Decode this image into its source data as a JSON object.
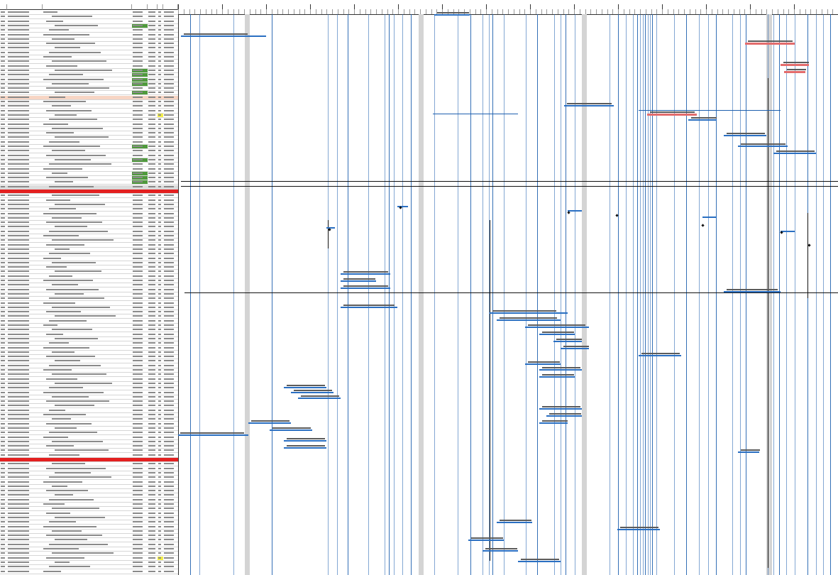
{
  "window": {
    "title": ""
  },
  "table": {
    "columns": [
      {
        "id": "num",
        "label": ""
      },
      {
        "id": "wbs",
        "label": ""
      },
      {
        "id": "name",
        "label": ""
      },
      {
        "id": "cost",
        "label": ""
      },
      {
        "id": "pct",
        "label": ""
      },
      {
        "id": "flag",
        "label": ""
      },
      {
        "id": "actual",
        "label": ""
      }
    ],
    "row_count": 126,
    "row_status": {
      "0": "normal",
      "1": "normal",
      "2": "normal",
      "3": "normal",
      "4": "normal",
      "5": "normal",
      "6": "normal",
      "7": "normal",
      "8": "normal",
      "9": "normal",
      "10": "normal",
      "11": "normal",
      "12": "normal",
      "13": "normal",
      "14": "normal",
      "15": "normal",
      "16": "normal",
      "17": "normal",
      "18": "normal",
      "19": "summary-light",
      "20": "normal",
      "21": "normal",
      "22": "normal",
      "23": "normal",
      "24": "normal",
      "25": "normal",
      "26": "normal",
      "27": "normal",
      "28": "normal",
      "29": "normal",
      "30": "normal",
      "31": "normal",
      "32": "normal",
      "33": "normal",
      "34": "normal",
      "35": "normal",
      "36": "normal",
      "37": "normal",
      "38": "normal",
      "39": "summary-grey",
      "40": "critical",
      "41": "normal"
    },
    "highlight_cells": [
      {
        "row": 3,
        "col": "cost",
        "status": "complete"
      },
      {
        "row": 13,
        "col": "cost",
        "status": "complete"
      },
      {
        "row": 14,
        "col": "cost",
        "status": "complete"
      },
      {
        "row": 15,
        "col": "cost",
        "status": "complete"
      },
      {
        "row": 16,
        "col": "cost",
        "status": "complete"
      },
      {
        "row": 18,
        "col": "cost",
        "status": "complete"
      },
      {
        "row": 23,
        "col": "flag",
        "status": "warning"
      },
      {
        "row": 30,
        "col": "cost",
        "status": "complete"
      },
      {
        "row": 33,
        "col": "cost",
        "status": "complete"
      },
      {
        "row": 36,
        "col": "cost",
        "status": "complete"
      },
      {
        "row": 37,
        "col": "cost",
        "status": "complete"
      },
      {
        "row": 38,
        "col": "cost",
        "status": "complete"
      },
      {
        "row": 122,
        "col": "flag",
        "status": "warning"
      }
    ],
    "extra_critical_rows": [
      100
    ]
  },
  "timeline": {
    "months": [
      "",
      "",
      "",
      "",
      "",
      "",
      "",
      "",
      "",
      "",
      "",
      "",
      "",
      "",
      ""
    ],
    "weeks_per_month": 4
  },
  "gantt": {
    "bar_labels": []
  },
  "colors": {
    "summary_light": "#f7d5c4",
    "summary_grey": "#dcdcdc",
    "critical": "#e32020",
    "complete": "#4f9a3c",
    "warning": "#f5f04a",
    "task_line": "#2a6fc2",
    "critical_bar": "#e36c6c",
    "dependency_line": "#1d5fae",
    "nonworking_band": "#d4d4d4"
  }
}
